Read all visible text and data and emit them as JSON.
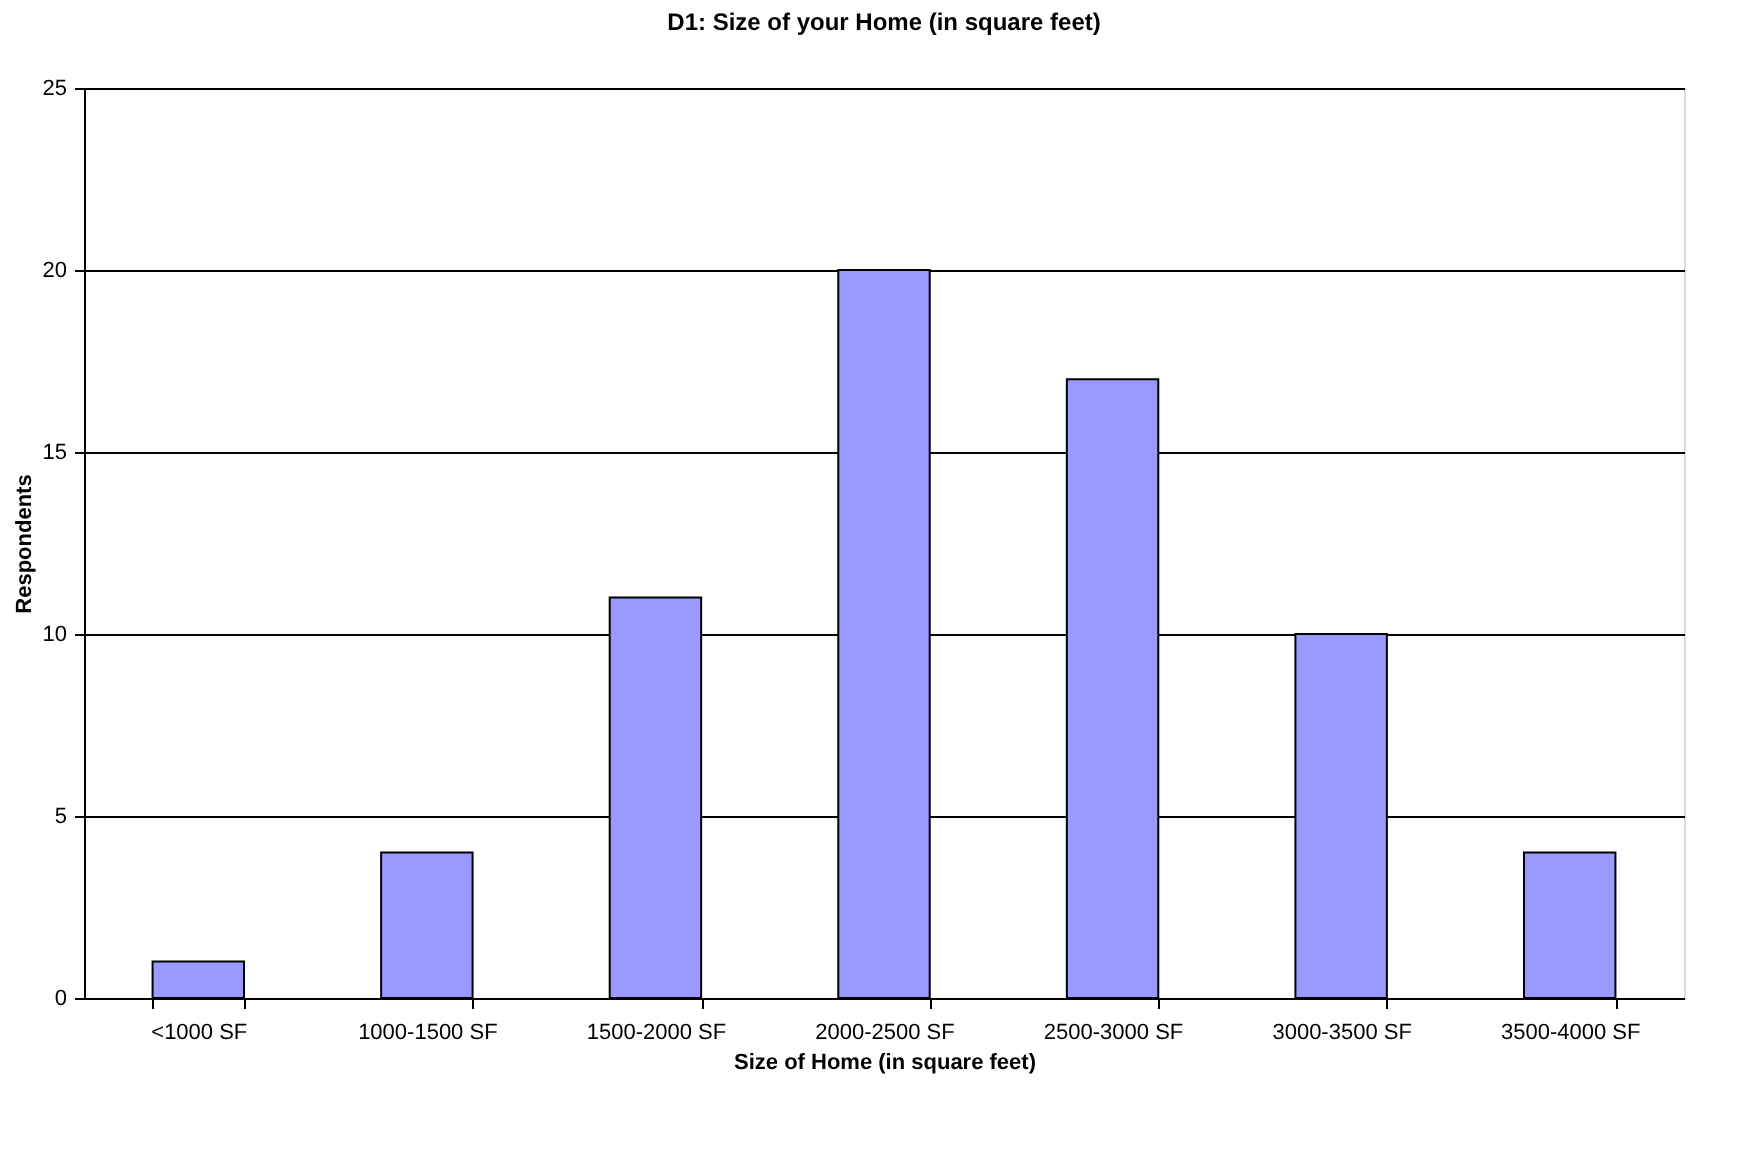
{
  "chart_data": {
    "type": "bar",
    "title": "D1: Size of your Home (in square feet)",
    "xlabel": "Size of Home (in square feet)",
    "ylabel": "Respondents",
    "categories": [
      "<1000 SF",
      "1000-1500 SF",
      "1500-2000 SF",
      "2000-2500 SF",
      "2500-3000 SF",
      "3000-3500 SF",
      "3500-4000 SF"
    ],
    "values": [
      1,
      4,
      11,
      20,
      17,
      10,
      4
    ],
    "color": "#9999ff",
    "ylim": [
      0,
      25
    ],
    "yticks": [
      0,
      5,
      10,
      15,
      20,
      25
    ],
    "grid": "y"
  }
}
